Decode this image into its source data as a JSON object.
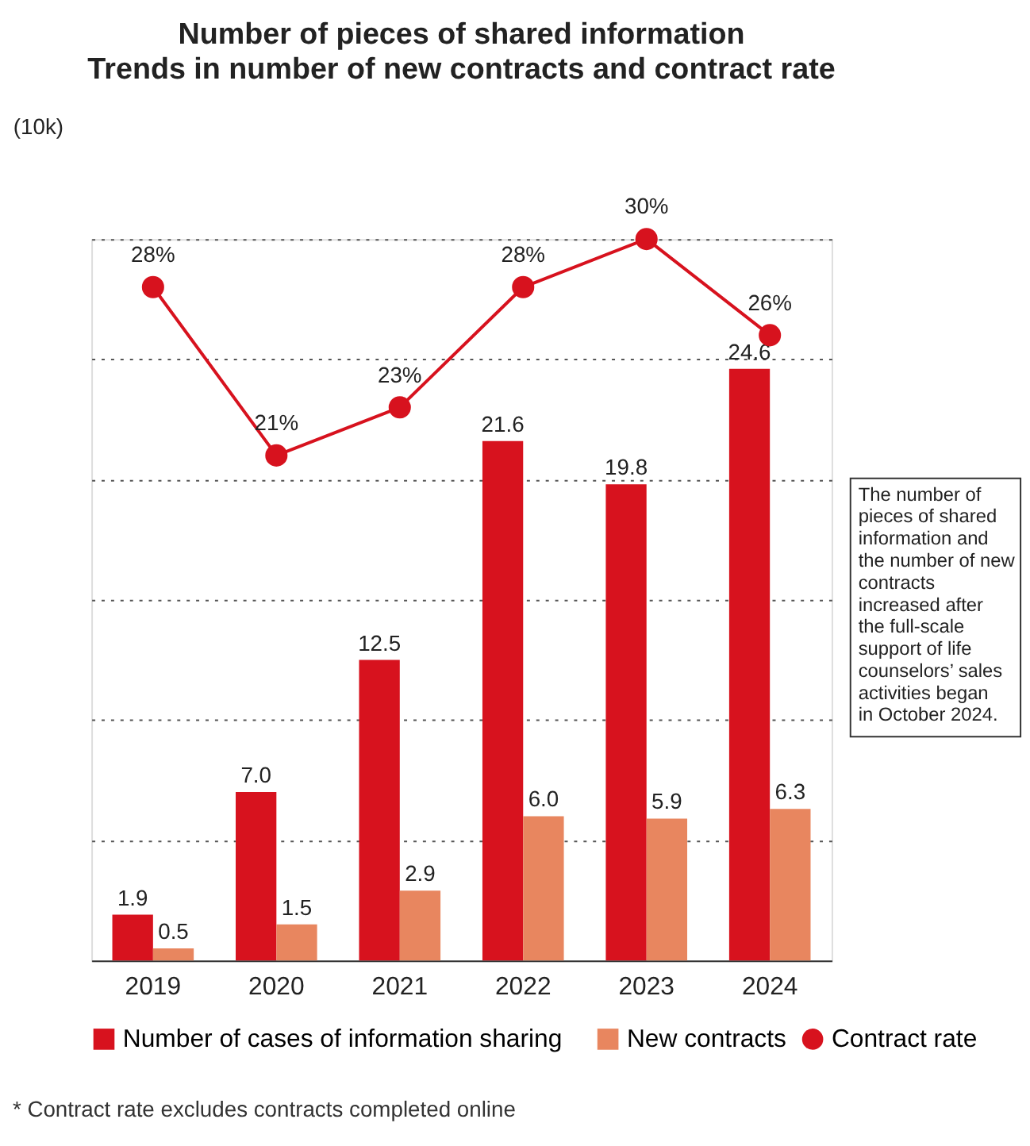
{
  "chart_data": {
    "type": "bar",
    "title": "Number of pieces of shared information",
    "subtitle": "Trends in number of new contracts and contract rate",
    "ylabel": "(10k)",
    "categories": [
      "2019",
      "2020",
      "2021",
      "2022",
      "2023",
      "2024"
    ],
    "series": [
      {
        "name": "Number of cases of information sharing",
        "color": "#d7121e",
        "values": [
          1.9,
          7.0,
          12.5,
          21.6,
          19.8,
          24.6
        ],
        "value_labels": [
          "1.9",
          "7.0",
          "12.5",
          "21.6",
          "19.8",
          "24.6"
        ]
      },
      {
        "name": "New contracts",
        "color": "#e8865f",
        "values": [
          0.5,
          1.5,
          2.9,
          6.0,
          5.9,
          6.3
        ],
        "value_labels": [
          "0.5",
          "1.5",
          "2.9",
          "6.0",
          "5.9",
          "6.3"
        ]
      },
      {
        "name": "Contract rate",
        "color": "#d7121e",
        "type": "line",
        "values": [
          28,
          21,
          23,
          28,
          30,
          26
        ],
        "value_labels": [
          "28%",
          "21%",
          "23%",
          "28%",
          "30%",
          "26%"
        ]
      }
    ],
    "ylim": [
      0,
      30
    ],
    "yticks": [
      {
        "value": 5,
        "label": null
      },
      {
        "value": 10,
        "label": null
      },
      {
        "value": 15,
        "label": null
      },
      {
        "value": 20,
        "label": null
      },
      {
        "value": 25,
        "label": null
      },
      {
        "value": 30,
        "label": null
      }
    ],
    "grid": "y",
    "tick_labels": "x",
    "legend": "bottom",
    "marker": "circle",
    "line_style": "solid",
    "annotations": [
      "The number of pieces of shared information and the number of new contracts increased after the full-scale support of life counselors’ sales activities began in October 2024.",
      "* Contract rate excludes contracts completed online"
    ]
  }
}
